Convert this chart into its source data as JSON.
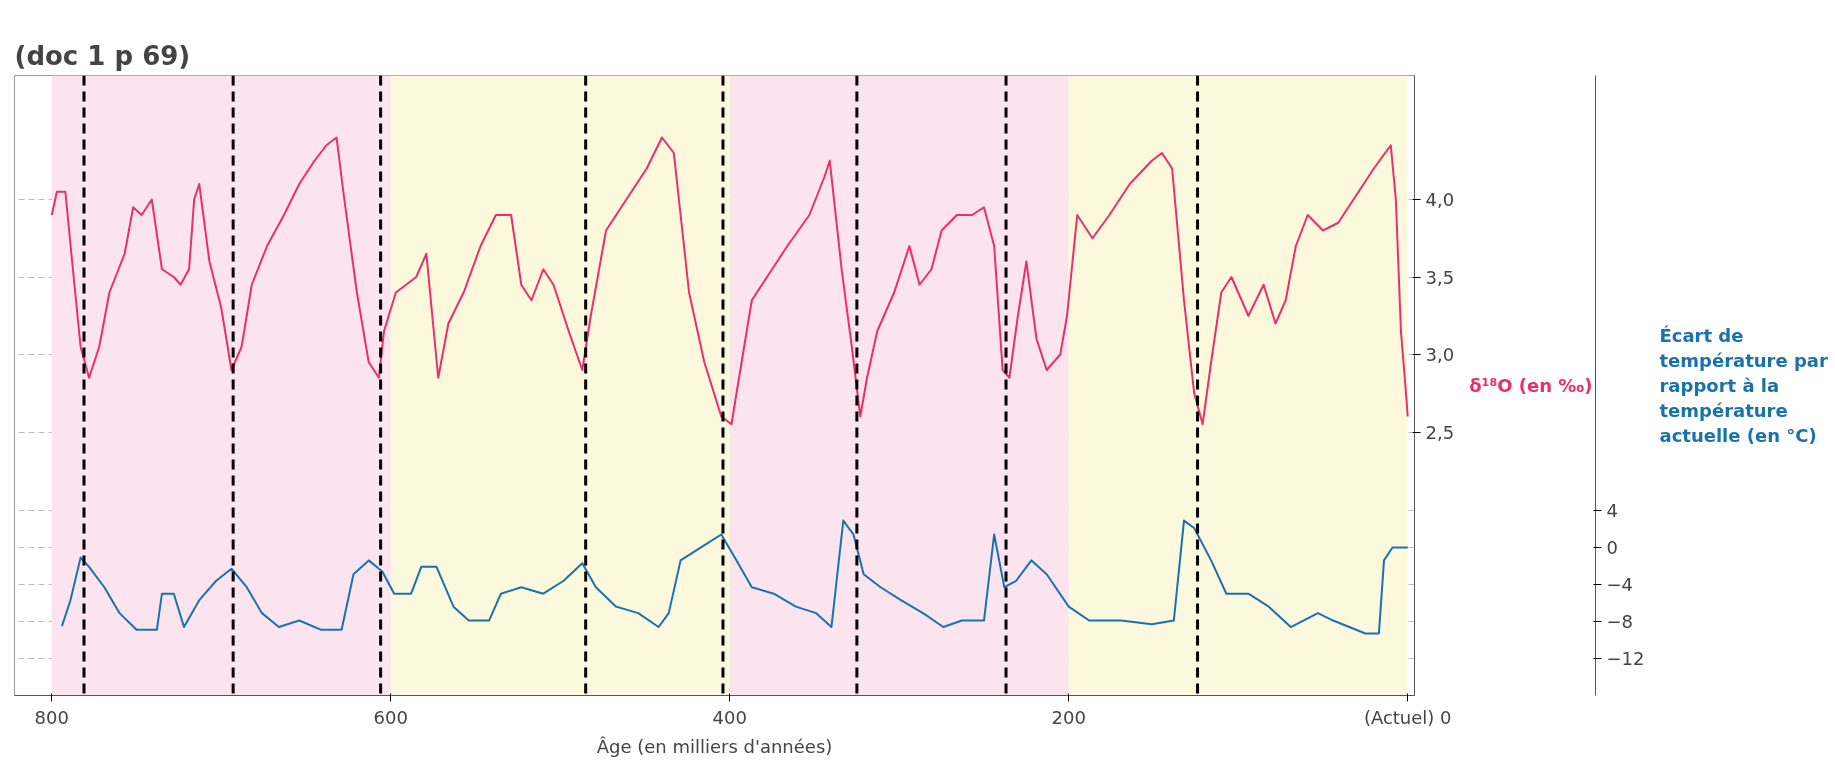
{
  "chart_data": {
    "type": "line",
    "title": "(doc 1 p 69)",
    "xlabel": "Âge (en milliers d'années)",
    "ylabel": "δ¹⁸O (en ‰)",
    "y2label": "Écart de température par rapport à la température actuelle (en °C)",
    "xlim": [
      822,
      -4
    ],
    "xticks": [
      800,
      600,
      400,
      200,
      {
        "value": 0,
        "label": "(Actuel) 0"
      }
    ],
    "ylim": [
      0.8,
      4.8
    ],
    "yticks": [
      {
        "value": 2.5,
        "label": "2,5"
      },
      {
        "value": 3.0,
        "label": "3,0"
      },
      {
        "value": 3.5,
        "label": "3,5"
      },
      {
        "value": 4.0,
        "label": "4,0"
      }
    ],
    "y2lim": [
      -16,
      51
    ],
    "y2ticks": [
      {
        "value": -12,
        "label": "−12"
      },
      {
        "value": -8,
        "label": "−8"
      },
      {
        "value": -4,
        "label": "−4"
      },
      0,
      4
    ],
    "grid": "y",
    "line_style": "solid",
    "series": [
      {
        "color": "#e8306a",
        "x": [
          800,
          797,
          792,
          788,
          783,
          778,
          772,
          766,
          757,
          752,
          747,
          741,
          735,
          728,
          724,
          719,
          716,
          713,
          707,
          700,
          694,
          688,
          682,
          673,
          663,
          654,
          645,
          638,
          632,
          628,
          620,
          613,
          607,
          604,
          597,
          591,
          585,
          579,
          572,
          566,
          557,
          547,
          538,
          529,
          523,
          517,
          510,
          504,
          495,
          487,
          482,
          473,
          461,
          449,
          440,
          433,
          424,
          415,
          405,
          399,
          393,
          387,
          378,
          366,
          353,
          344,
          341,
          334,
          328,
          323,
          319,
          313,
          303,
          294,
          288,
          281,
          275,
          266,
          257,
          250,
          244,
          239,
          235,
          230,
          225,
          219,
          213,
          205,
          201,
          195,
          186,
          176,
          164,
          151,
          145,
          139,
          132,
          126,
          121,
          116,
          110,
          104,
          94,
          85,
          78,
          72,
          66,
          59,
          50,
          41,
          32,
          20,
          10,
          7,
          4,
          1,
          0
        ],
        "values": [
          3.9,
          4.05,
          4.05,
          3.6,
          3.05,
          2.85,
          3.05,
          3.4,
          3.65,
          3.95,
          3.9,
          4.0,
          3.55,
          3.5,
          3.45,
          3.55,
          4.0,
          4.1,
          3.6,
          3.3,
          2.9,
          3.05,
          3.45,
          3.7,
          3.9,
          4.1,
          4.25,
          4.35,
          4.4,
          4.05,
          3.4,
          2.95,
          2.85,
          3.15,
          3.4,
          3.45,
          3.5,
          3.65,
          2.85,
          3.2,
          3.4,
          3.7,
          3.9,
          3.9,
          3.45,
          3.35,
          3.55,
          3.45,
          3.15,
          2.9,
          3.25,
          3.8,
          4.0,
          4.2,
          4.4,
          4.3,
          3.4,
          2.95,
          2.6,
          2.55,
          2.95,
          3.35,
          3.5,
          3.7,
          3.9,
          4.15,
          4.25,
          3.55,
          3.05,
          2.6,
          2.85,
          3.15,
          3.4,
          3.7,
          3.45,
          3.55,
          3.8,
          3.9,
          3.9,
          3.95,
          3.7,
          2.9,
          2.85,
          3.25,
          3.6,
          3.1,
          2.9,
          3.0,
          3.25,
          3.9,
          3.75,
          3.9,
          4.1,
          4.25,
          4.3,
          4.2,
          3.35,
          2.75,
          2.55,
          2.95,
          3.4,
          3.5,
          3.25,
          3.45,
          3.2,
          3.35,
          3.7,
          3.9,
          3.8,
          3.85,
          4.0,
          4.2,
          4.35,
          4.0,
          3.15,
          2.75,
          2.6
        ]
      },
      {
        "color": "#1a72ad",
        "axis": "y2",
        "x": [
          794,
          789,
          783,
          778,
          769,
          760,
          750,
          738,
          735,
          728,
          722,
          713,
          703,
          694,
          685,
          676,
          666,
          654,
          641,
          629,
          622,
          613,
          605,
          598,
          588,
          582,
          573,
          563,
          554,
          542,
          535,
          523,
          510,
          498,
          487,
          479,
          467,
          454,
          442,
          436,
          429,
          417,
          405,
          396,
          387,
          374,
          361,
          349,
          340,
          333,
          327,
          321,
          311,
          299,
          286,
          274,
          263,
          250,
          244,
          238,
          231,
          222,
          213,
          200,
          188,
          169,
          151,
          138,
          132,
          126,
          116,
          107,
          94,
          82,
          69,
          53,
          44,
          25,
          17,
          14,
          9,
          0
        ],
        "values": [
          -8.5,
          -5.7,
          -1.1,
          -2.1,
          -4.3,
          -7.1,
          -8.9,
          -8.9,
          -5,
          -5,
          -8.6,
          -5.7,
          -3.6,
          -2.3,
          -4.3,
          -7.1,
          -8.6,
          -7.9,
          -8.9,
          -8.9,
          -2.9,
          -1.4,
          -2.6,
          -5,
          -5,
          -2.1,
          -2.1,
          -6.4,
          -7.9,
          -7.9,
          -5,
          -4.3,
          -5,
          -3.6,
          -1.7,
          -4.3,
          -6.4,
          -7.1,
          -8.6,
          -7.1,
          -1.4,
          0,
          1.4,
          -1.4,
          -4.3,
          -5,
          -6.4,
          -7.1,
          -8.6,
          2.9,
          1.4,
          -2.9,
          -4.3,
          -5.7,
          -7.1,
          -8.6,
          -7.9,
          -7.9,
          1.4,
          -4.3,
          -3.6,
          -1.4,
          -2.9,
          -6.4,
          -7.9,
          -7.9,
          -8.3,
          -7.9,
          2.9,
          2.1,
          -1.4,
          -5,
          -5,
          -6.4,
          -8.6,
          -7.1,
          -7.9,
          -9.3,
          -9.3,
          -1.4,
          0,
          0
        ]
      }
    ],
    "bands": [
      {
        "axis": "x",
        "from": 800,
        "to": 600,
        "color": "#fbe4ee"
      },
      {
        "axis": "x",
        "from": 600,
        "to": 400,
        "color": "#fcf8de"
      },
      {
        "axis": "x",
        "from": 400,
        "to": 200,
        "color": "#fbe4ee"
      },
      {
        "axis": "x",
        "from": 200,
        "to": 0,
        "color": "#fcf8de"
      }
    ],
    "ref_lines": [
      {
        "axis": "x",
        "value": 781,
        "color": "#000000",
        "line_style": "dashed"
      },
      {
        "axis": "x",
        "value": 693,
        "color": "#000000",
        "line_style": "dashed"
      },
      {
        "axis": "x",
        "value": 606,
        "color": "#000000",
        "line_style": "dashed"
      },
      {
        "axis": "x",
        "value": 485,
        "color": "#000000",
        "line_style": "dashed"
      },
      {
        "axis": "x",
        "value": 404,
        "color": "#000000",
        "line_style": "dashed"
      },
      {
        "axis": "x",
        "value": 325,
        "color": "#000000",
        "line_style": "dashed"
      },
      {
        "axis": "x",
        "value": 237,
        "color": "#000000",
        "line_style": "dashed"
      },
      {
        "axis": "x",
        "value": 124,
        "color": "#000000",
        "line_style": "dashed"
      }
    ]
  }
}
